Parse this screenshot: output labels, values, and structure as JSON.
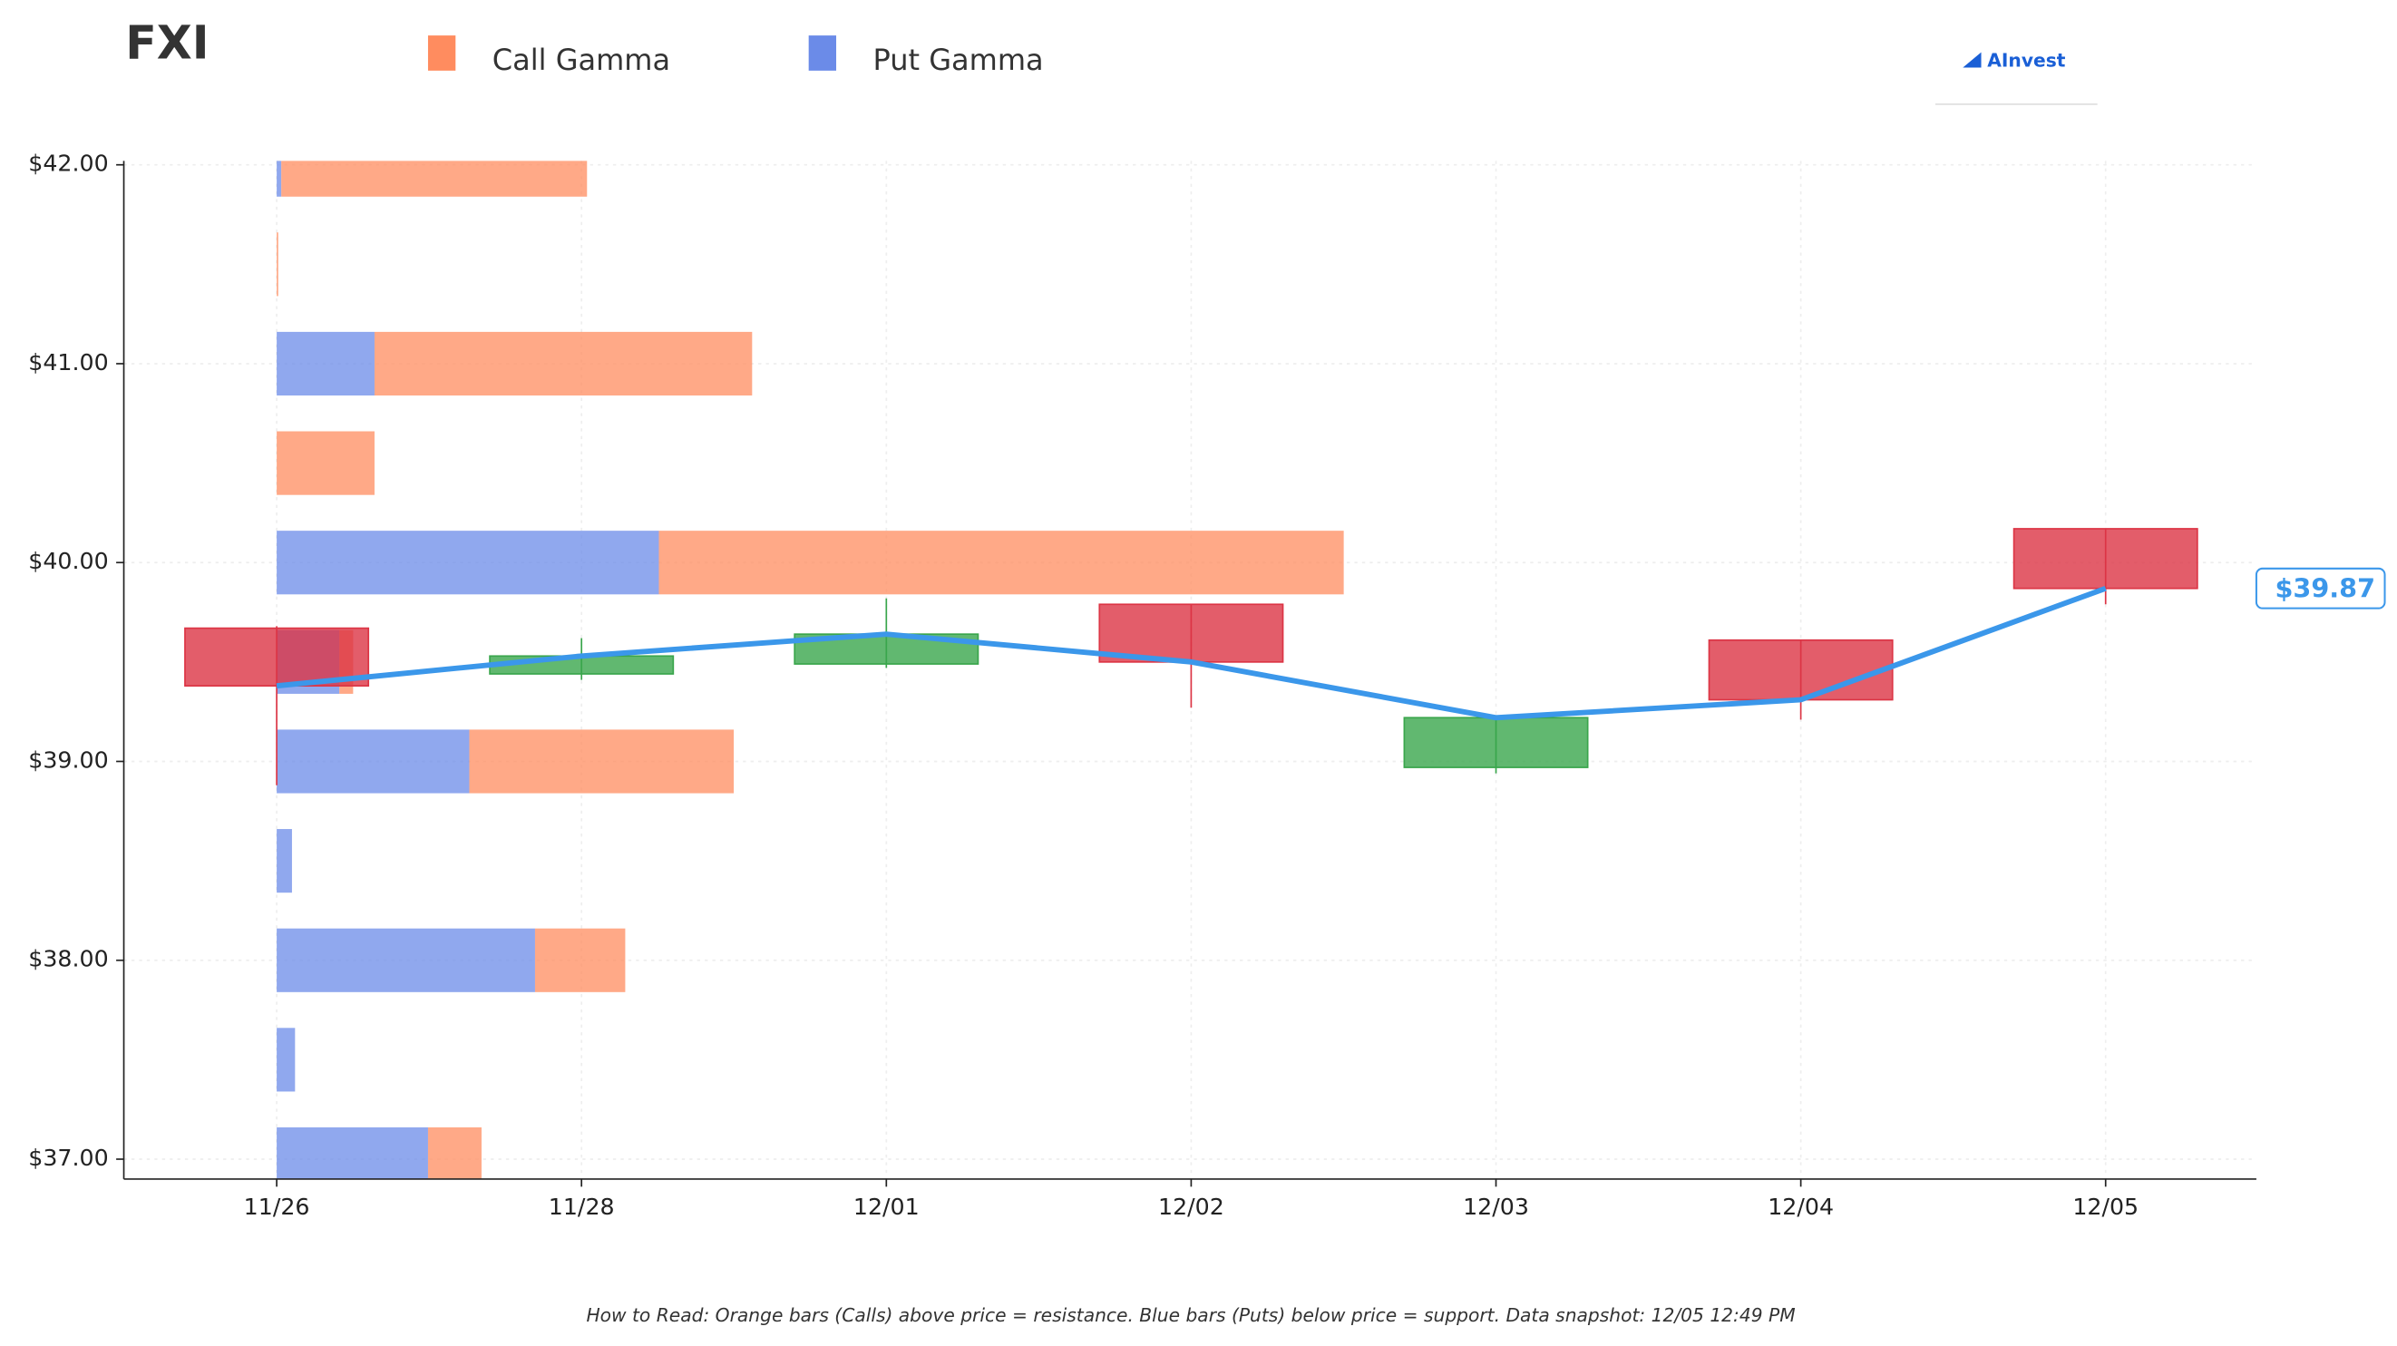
{
  "chart_data": {
    "type": "candlestick",
    "title": "FXI",
    "brand": "AInvest",
    "footnote": "How to Read: Orange bars (Calls) above price = resistance. Blue bars (Puts) below price = support. Data snapshot: 12/05 12:49 PM",
    "categories": [
      "11/26",
      "11/28",
      "12/01",
      "12/02",
      "12/03",
      "12/04",
      "12/05"
    ],
    "open": [
      39.67,
      39.44,
      39.49,
      39.79,
      38.97,
      39.61,
      40.17
    ],
    "high": [
      39.68,
      39.62,
      39.82,
      39.79,
      39.22,
      39.61,
      40.17
    ],
    "low": [
      38.88,
      39.41,
      39.47,
      39.27,
      38.94,
      39.21,
      39.79
    ],
    "close": [
      39.38,
      39.53,
      39.64,
      39.5,
      39.22,
      39.31,
      39.87
    ],
    "up_color": "#3aa64c",
    "down_color": "#dc3545",
    "line_color": "#3b97ea",
    "price_label": {
      "value": 39.87,
      "label": "$39.87"
    },
    "gamma": {
      "levels": [
        42,
        41.5,
        41,
        40.5,
        40,
        39.5,
        39,
        38.5,
        38,
        37.5,
        37
      ],
      "series": [
        {
          "name": "Put Gamma",
          "color": "#6b8be8",
          "values": [
            3,
            0,
            64,
            0,
            250,
            41,
            126,
            10,
            169,
            12,
            99
          ]
        },
        {
          "name": "Call Gamma",
          "color": "#ff8c5f",
          "values": [
            200,
            1,
            247,
            64,
            448,
            9,
            173,
            0,
            59,
            0,
            35
          ]
        }
      ]
    },
    "ylim": [
      36.9,
      42.02
    ],
    "yticks": [
      {
        "value": 37,
        "label": "$37.00"
      },
      {
        "value": 38,
        "label": "$38.00"
      },
      {
        "value": 39,
        "label": "$39.00"
      },
      {
        "value": 40,
        "label": "$40.00"
      },
      {
        "value": 41,
        "label": "$41.00"
      },
      {
        "value": 42,
        "label": "$42.00"
      }
    ],
    "grid": true
  }
}
